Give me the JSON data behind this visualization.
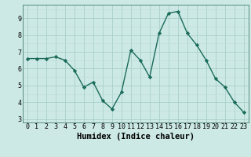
{
  "title": "",
  "xlabel": "Humidex (Indice chaleur)",
  "ylabel": "",
  "x": [
    0,
    1,
    2,
    3,
    4,
    5,
    6,
    7,
    8,
    9,
    10,
    11,
    12,
    13,
    14,
    15,
    16,
    17,
    18,
    19,
    20,
    21,
    22,
    23
  ],
  "y": [
    6.6,
    6.6,
    6.6,
    6.7,
    6.5,
    5.9,
    4.9,
    5.2,
    4.1,
    3.6,
    4.6,
    7.1,
    6.5,
    5.5,
    8.1,
    9.3,
    9.4,
    8.1,
    7.4,
    6.5,
    5.4,
    4.9,
    4.0,
    3.4
  ],
  "line_color": "#1a6b5a",
  "marker": "D",
  "marker_size": 2.2,
  "bg_color": "#cce9e5",
  "grid_major_color": "#aacfca",
  "grid_minor_color": "#bdddd8",
  "ylim": [
    2.8,
    9.8
  ],
  "yticks": [
    3,
    4,
    5,
    6,
    7,
    8,
    9
  ],
  "xlim": [
    -0.5,
    23.5
  ],
  "xticks": [
    0,
    1,
    2,
    3,
    4,
    5,
    6,
    7,
    8,
    9,
    10,
    11,
    12,
    13,
    14,
    15,
    16,
    17,
    18,
    19,
    20,
    21,
    22,
    23
  ],
  "tick_fontsize": 6,
  "label_fontsize": 7.5
}
